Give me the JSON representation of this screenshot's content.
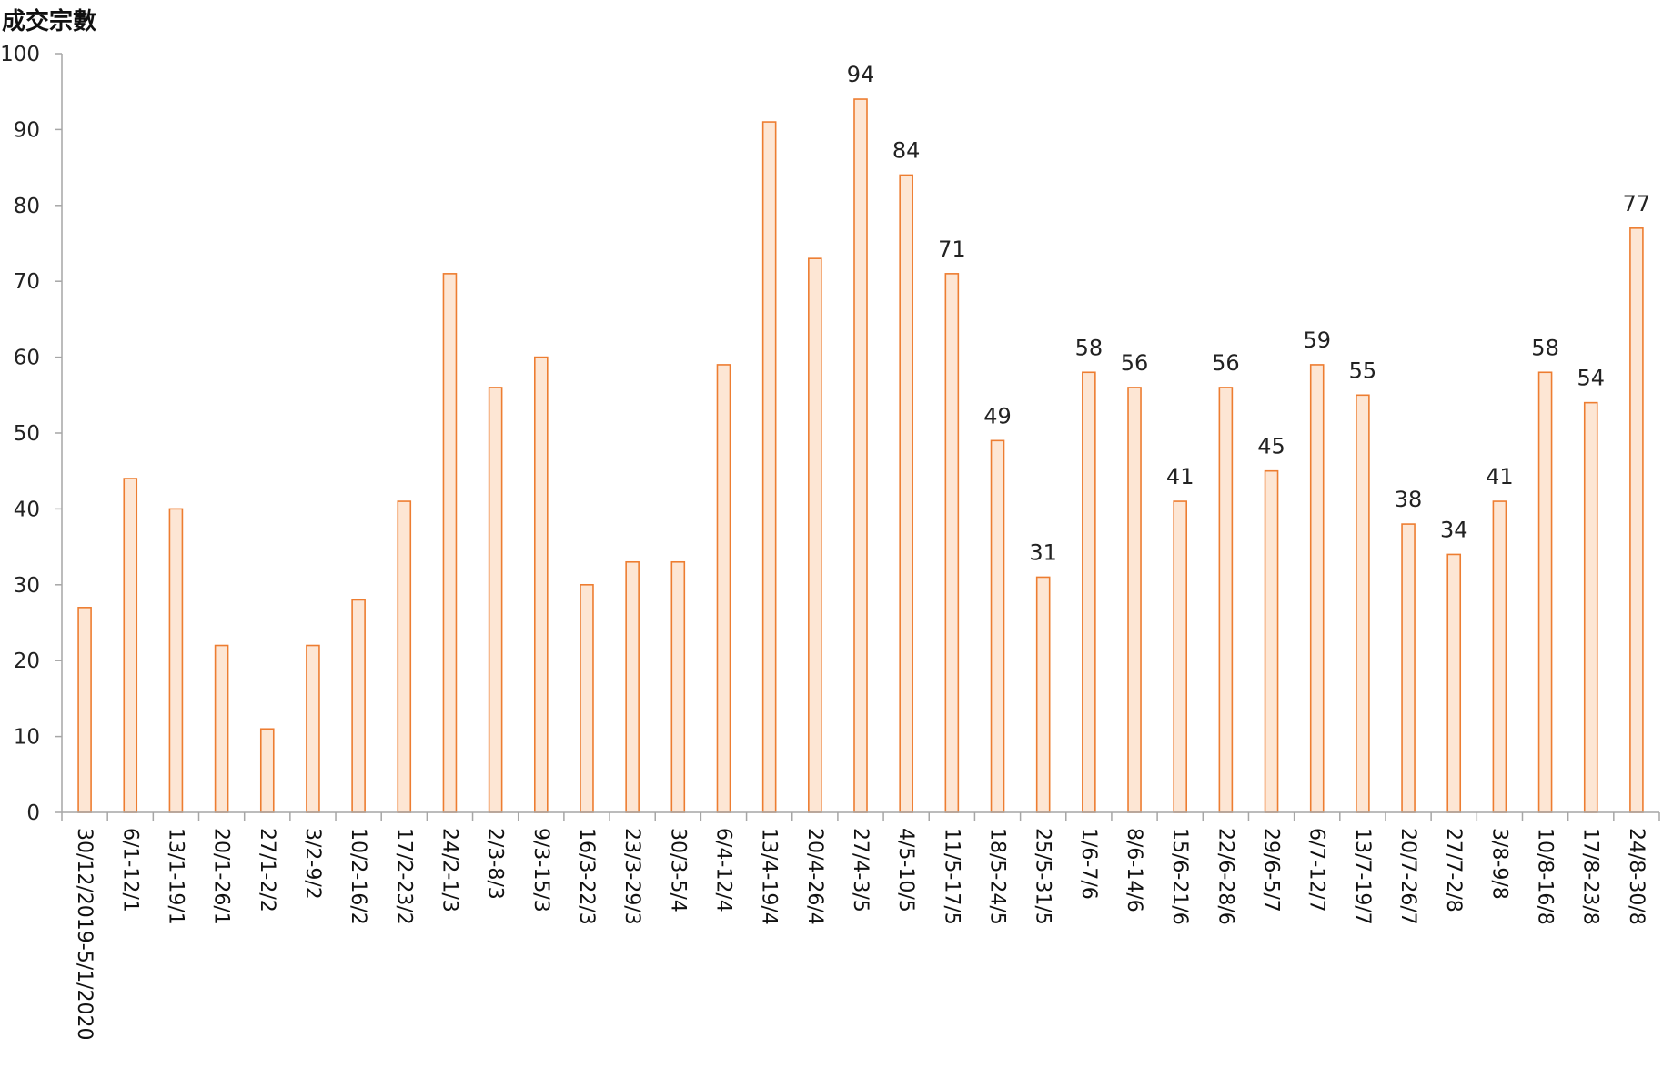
{
  "chart_data": {
    "type": "bar",
    "title": "",
    "xlabel": "",
    "ylabel": "成交宗數",
    "ylim": [
      0,
      100
    ],
    "yticks": [
      0,
      10,
      20,
      30,
      40,
      50,
      60,
      70,
      80,
      90,
      100
    ],
    "grid": false,
    "bar_color": "#ed7d31",
    "bar_fill": "#fde6d4",
    "categories": [
      "30/12/2019-5/1/2020",
      "6/1-12/1",
      "13/1-19/1",
      "20/1-26/1",
      "27/1-2/2",
      "3/2-9/2",
      "10/2-16/2",
      "17/2-23/2",
      "24/2-1/3",
      "2/3-8/3",
      "9/3-15/3",
      "16/3-22/3",
      "23/3-29/3",
      "30/3-5/4",
      "6/4-12/4",
      "13/4-19/4",
      "20/4-26/4",
      "27/4-3/5",
      "4/5-10/5",
      "11/5-17/5",
      "18/5-24/5",
      "25/5-31/5",
      "1/6-7/6",
      "8/6-14/6",
      "15/6-21/6",
      "22/6-28/6",
      "29/6-5/7",
      "6/7-12/7",
      "13/7-19/7",
      "20/7-26/7",
      "27/7-2/8",
      "3/8-9/8",
      "10/8-16/8",
      "17/8-23/8",
      "24/8-30/8"
    ],
    "values": [
      27,
      44,
      40,
      22,
      11,
      22,
      28,
      41,
      71,
      56,
      60,
      30,
      33,
      33,
      59,
      91,
      73,
      94,
      84,
      71,
      49,
      31,
      58,
      56,
      41,
      56,
      45,
      59,
      55,
      38,
      34,
      41,
      58,
      54,
      77
    ],
    "labeled_values": [
      null,
      null,
      null,
      null,
      null,
      null,
      null,
      null,
      null,
      null,
      null,
      null,
      null,
      null,
      null,
      null,
      null,
      "94",
      "84",
      "71",
      "49",
      "31",
      "58",
      "56",
      "41",
      "56",
      "45",
      "59",
      "55",
      "38",
      "34",
      "41",
      "58",
      "54",
      "77"
    ]
  }
}
